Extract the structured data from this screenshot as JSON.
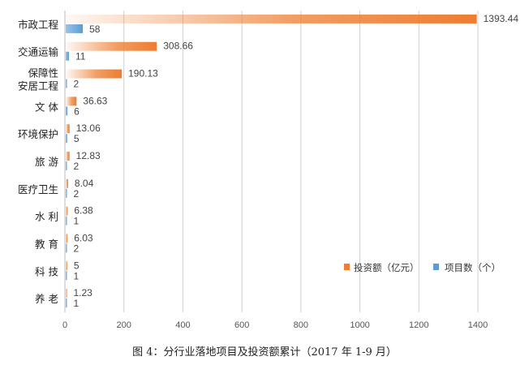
{
  "chart_data": {
    "type": "bar",
    "orientation": "horizontal",
    "categories": [
      "市政工程",
      "交通运输",
      "保障性\n安居工程",
      "文 体",
      "环境保护",
      "旅 游",
      "医疗卫生",
      "水 利",
      "教 育",
      "科 技",
      "养 老"
    ],
    "series": [
      {
        "name": "投资额（亿元）",
        "color": "#ED7D31",
        "values": [
          1393.44,
          308.66,
          190.13,
          36.63,
          13.06,
          12.83,
          8.04,
          6.38,
          6.03,
          5,
          1.23
        ],
        "labels": [
          "1393.44",
          "308.66",
          "190.13",
          "36.63",
          "13.06",
          "12.83",
          "8.04",
          "6.38",
          "6.03",
          "5",
          "1.23"
        ]
      },
      {
        "name": "项目数（个）",
        "color": "#5B9BD5",
        "values": [
          58,
          11,
          2,
          6,
          5,
          2,
          2,
          1,
          2,
          1,
          1
        ],
        "labels": [
          "58",
          "11",
          "2",
          "6",
          "5",
          "2",
          "2",
          "1",
          "2",
          "1",
          "1"
        ]
      }
    ],
    "xlim": [
      0,
      1400
    ],
    "xticks": [
      "0",
      "200",
      "400",
      "600",
      "800",
      "1000",
      "1200",
      "1400"
    ],
    "grid": "vertical",
    "legend": "bottom-right",
    "caption": "图 4：分行业落地项目及投资额累计（2017 年 1-9 月）"
  }
}
